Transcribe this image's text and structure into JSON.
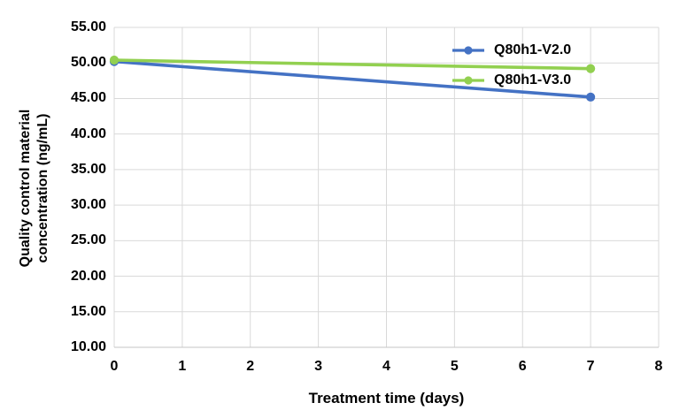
{
  "chart_data": {
    "type": "line",
    "title": "",
    "xlabel": "Treatment time (days)",
    "ylabel_lines": [
      "Quality control material",
      "concentration (ng/mL)"
    ],
    "x": [
      0,
      7
    ],
    "series": [
      {
        "name": "Q80h1-V2.0",
        "color": "#4472C4",
        "values": [
          50.2,
          45.2
        ]
      },
      {
        "name": "Q80h1-V3.0",
        "color": "#92D050",
        "values": [
          50.4,
          49.2
        ]
      }
    ],
    "xlim": [
      0,
      8
    ],
    "ylim": [
      10,
      55
    ],
    "x_ticks": [
      "0",
      "1",
      "2",
      "3",
      "4",
      "5",
      "6",
      "7",
      "8"
    ],
    "y_ticks": [
      "55.00",
      "50.00",
      "45.00",
      "40.00",
      "35.00",
      "30.00",
      "25.00",
      "20.00",
      "15.00",
      "10.00"
    ],
    "grid": true,
    "legend_position": "inside-top-right",
    "colors": {
      "gridline": "#D9D9D9",
      "axis_line": "#C6C6C6",
      "text": "#000000",
      "background": "#FFFFFF"
    }
  }
}
